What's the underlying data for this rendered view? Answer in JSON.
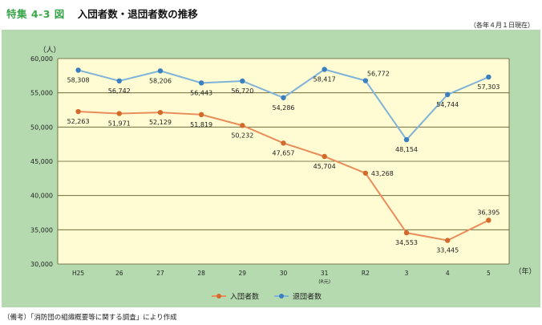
{
  "header": {
    "figure_label": "特集 4-3 図",
    "title": "入団者数・退団者数の推移",
    "date_note": "（各年４月１日現在）"
  },
  "footnote": "（備考）「消防団の組織概要等に関する調査」により作成",
  "colors": {
    "panel_bg": "#b5dab0",
    "plot_bg": "#fffbd2",
    "grid": "#5a5a2a",
    "entrants": "#e88d5b",
    "entrants_marker": "#d36a2c",
    "retirees": "#7fb3d9",
    "retirees_marker": "#3a7fbf"
  },
  "chart_data": {
    "type": "line",
    "ylabel": "（人）",
    "xlabel": "（年）",
    "categories": [
      "H25",
      "26",
      "27",
      "28",
      "29",
      "30",
      "31",
      "R2",
      "3",
      "4",
      "5"
    ],
    "category_sublabels": {
      "31": "(R元)"
    },
    "ylim": [
      30000,
      60000
    ],
    "yticks": [
      30000,
      35000,
      40000,
      45000,
      50000,
      55000,
      60000
    ],
    "ytick_labels": [
      "30,000",
      "35,000",
      "40,000",
      "45,000",
      "50,000",
      "55,000",
      "60,000"
    ],
    "grid": true,
    "legend_position": "bottom",
    "series": [
      {
        "name": "入団者数",
        "values": [
          52263,
          51971,
          52129,
          51819,
          50232,
          47657,
          45704,
          43268,
          34553,
          33445,
          36395
        ],
        "labels": [
          "52,263",
          "51,971",
          "52,129",
          "51,819",
          "50,232",
          "47,657",
          "45,704",
          "43,268",
          "34,553",
          "33,445",
          "36,395"
        ],
        "label_pos": [
          "below",
          "below",
          "below",
          "below",
          "below",
          "below",
          "below",
          "right",
          "below",
          "below",
          "above"
        ]
      },
      {
        "name": "退団者数",
        "values": [
          58308,
          56742,
          58206,
          56443,
          56720,
          54286,
          58417,
          56772,
          48154,
          54744,
          57303
        ],
        "labels": [
          "58,308",
          "56,742",
          "58,206",
          "56,443",
          "56,720",
          "54,286",
          "58,417",
          "56,772",
          "48,154",
          "54,744",
          "57,303"
        ],
        "label_pos": [
          "below",
          "below",
          "below",
          "below",
          "below",
          "below",
          "below",
          "above-right",
          "below",
          "below",
          "below"
        ]
      }
    ]
  }
}
